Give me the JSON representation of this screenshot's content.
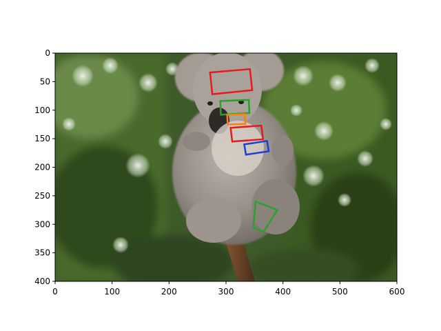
{
  "chart_data": {
    "type": "image",
    "title": "",
    "xlabel": "",
    "ylabel": "",
    "xlim": [
      0,
      600
    ],
    "ylim": [
      400,
      0
    ],
    "xticks": [
      0,
      100,
      200,
      300,
      400,
      500,
      600
    ],
    "yticks": [
      0,
      50,
      100,
      150,
      200,
      250,
      300,
      350,
      400
    ],
    "grid": false,
    "image_content": "koala clinging to a branch, blurred green foliage background",
    "annotations": [
      {
        "label": "text-box",
        "color": "#e41a1c",
        "points": [
          [
            272,
            34
          ],
          [
            342,
            28
          ],
          [
            346,
            65
          ],
          [
            276,
            72
          ]
        ]
      },
      {
        "label": "text-box",
        "color": "#2ca02c",
        "points": [
          [
            290,
            84
          ],
          [
            340,
            82
          ],
          [
            341,
            105
          ],
          [
            291,
            108
          ]
        ]
      },
      {
        "label": "text-box",
        "color": "#ff7f0e",
        "points": [
          [
            302,
            108
          ],
          [
            333,
            107
          ],
          [
            334,
            124
          ],
          [
            303,
            125
          ]
        ]
      },
      {
        "label": "text-box",
        "color": "#e41a1c",
        "points": [
          [
            308,
            131
          ],
          [
            362,
            127
          ],
          [
            365,
            151
          ],
          [
            311,
            155
          ]
        ]
      },
      {
        "label": "text-box",
        "color": "#1f3fd6",
        "points": [
          [
            332,
            160
          ],
          [
            372,
            154
          ],
          [
            375,
            172
          ],
          [
            335,
            178
          ]
        ]
      },
      {
        "label": "text-box",
        "color": "#2ca02c",
        "points": [
          [
            352,
            260
          ],
          [
            390,
            275
          ],
          [
            366,
            313
          ],
          [
            348,
            306
          ]
        ]
      }
    ]
  }
}
